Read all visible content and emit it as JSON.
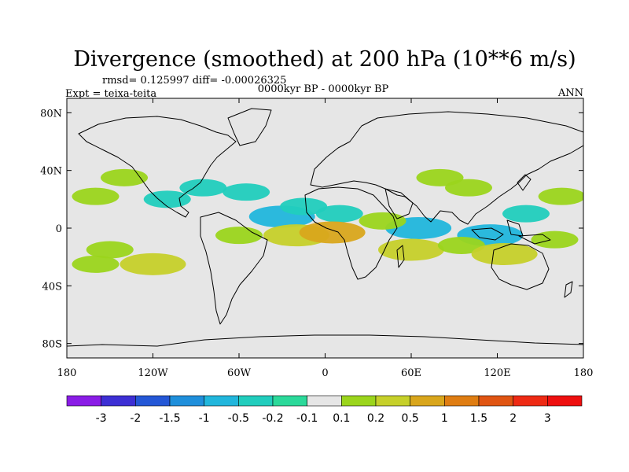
{
  "chart_data": {
    "type": "heatmap",
    "title": "Divergence (smoothed) at 200 hPa (10**6 m/s)",
    "stats": "rmsd= 0.125997 diff= -0.00026325",
    "left_label": "Expt = teixa-teita",
    "center_label": "0000kyr BP - 0000kyr BP",
    "right_label": "ANN",
    "x_ticks": [
      "180",
      "120W",
      "60W",
      "0",
      "60E",
      "120E",
      "180"
    ],
    "x_tick_values": [
      -180,
      -120,
      -60,
      0,
      60,
      120,
      180
    ],
    "y_ticks": [
      "80N",
      "40N",
      "0",
      "40S",
      "80S"
    ],
    "y_tick_values": [
      80,
      40,
      0,
      -40,
      -80
    ],
    "xlim": [
      -180,
      180
    ],
    "ylim": [
      -90,
      90
    ],
    "colorbar": {
      "labels": [
        "-3",
        "-2",
        "-1.5",
        "-1",
        "-0.5",
        "-0.2",
        "-0.1",
        "0.1",
        "0.2",
        "0.5",
        "1",
        "1.5",
        "2",
        "3"
      ],
      "colors": [
        "#8a1ce6",
        "#3d2fd4",
        "#2457d6",
        "#1f8fdb",
        "#21b6dc",
        "#21cdbd",
        "#2bd99a",
        "#e6e6e6",
        "#9bd51c",
        "#c6d02a",
        "#d9a61c",
        "#df7d12",
        "#e05512",
        "#ee2a14",
        "#ee0f0f"
      ]
    },
    "background_color": "#e6e6e6",
    "regions": [
      {
        "lon": -160,
        "lat": 22,
        "value": 0.2
      },
      {
        "lon": -140,
        "lat": 35,
        "value": 0.2
      },
      {
        "lon": -110,
        "lat": 20,
        "value": -0.2
      },
      {
        "lon": -85,
        "lat": 28,
        "value": -0.2
      },
      {
        "lon": -55,
        "lat": 25,
        "value": -0.2
      },
      {
        "lon": -30,
        "lat": 8,
        "value": -0.5
      },
      {
        "lon": -15,
        "lat": 15,
        "value": -0.2
      },
      {
        "lon": 10,
        "lat": 10,
        "value": -0.2
      },
      {
        "lon": 65,
        "lat": 0,
        "value": -0.5
      },
      {
        "lon": 80,
        "lat": 35,
        "value": 0.2
      },
      {
        "lon": 100,
        "lat": 28,
        "value": 0.2
      },
      {
        "lon": 115,
        "lat": -5,
        "value": -0.5
      },
      {
        "lon": 140,
        "lat": 10,
        "value": -0.2
      },
      {
        "lon": 165,
        "lat": 22,
        "value": 0.2
      },
      {
        "lon": -150,
        "lat": -15,
        "value": 0.2
      },
      {
        "lon": -120,
        "lat": -25,
        "value": 0.5
      },
      {
        "lon": -160,
        "lat": -25,
        "value": 0.2
      },
      {
        "lon": -60,
        "lat": -5,
        "value": 0.2
      },
      {
        "lon": -20,
        "lat": -5,
        "value": 0.5
      },
      {
        "lon": 5,
        "lat": -3,
        "value": 1
      },
      {
        "lon": 40,
        "lat": 5,
        "value": 0.2
      },
      {
        "lon": 60,
        "lat": -15,
        "value": 0.5
      },
      {
        "lon": 95,
        "lat": -12,
        "value": 0.2
      },
      {
        "lon": 125,
        "lat": -18,
        "value": 0.5
      },
      {
        "lon": 160,
        "lat": -8,
        "value": 0.2
      }
    ]
  }
}
